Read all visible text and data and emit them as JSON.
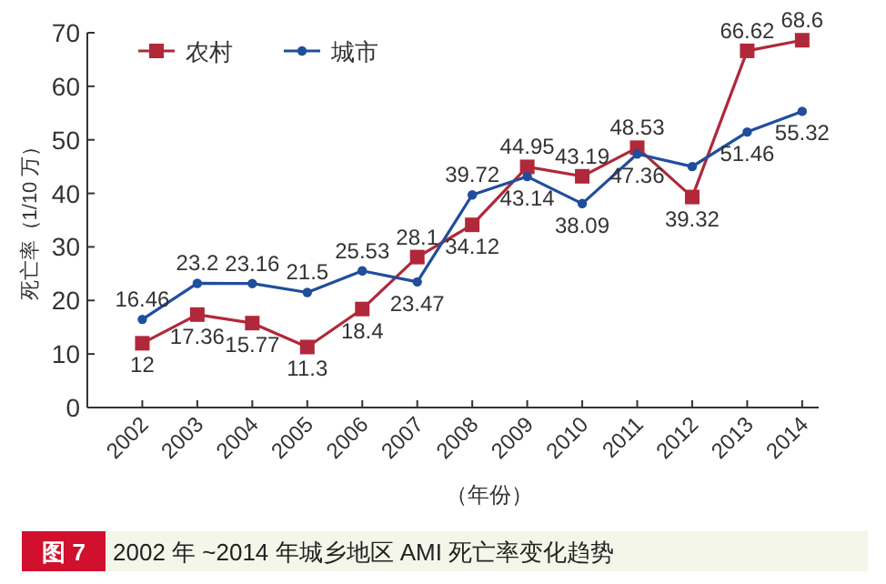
{
  "chart_data": {
    "type": "line",
    "title": "2002 年 ~2014 年城乡地区 AMI 死亡率变化趋势",
    "annotations": [
      "图 7"
    ],
    "xlabel": "（年份）",
    "ylabel": "死亡率（1/10 万）",
    "categories": [
      "2002",
      "2003",
      "2004",
      "2005",
      "2006",
      "2007",
      "2008",
      "2009",
      "2010",
      "2011",
      "2012",
      "2013",
      "2014"
    ],
    "series": [
      {
        "name": "农村",
        "color": "#b0283a",
        "marker": "square",
        "values": [
          12,
          17.36,
          15.77,
          11.3,
          18.4,
          28.1,
          34.12,
          44.95,
          43.19,
          48.53,
          39.32,
          66.62,
          68.6
        ],
        "value_labels": [
          "12",
          "17.36",
          "15.77",
          "11.3",
          "18.4",
          "28.1",
          "34.12",
          "44.95",
          "43.19",
          "48.53",
          "39.32",
          "66.62",
          "68.6"
        ]
      },
      {
        "name": "城市",
        "color": "#1f4e9c",
        "marker": "circle",
        "values": [
          16.46,
          23.2,
          23.16,
          21.5,
          25.53,
          23.47,
          39.72,
          43.14,
          38.09,
          47.36,
          45,
          51.46,
          55.32
        ],
        "value_labels": [
          "16.46",
          "23.2",
          "23.16",
          "21.5",
          "25.53",
          "23.47",
          "39.72",
          "43.14",
          "38.09",
          "47.36",
          null,
          "51.46",
          "55.32"
        ]
      }
    ],
    "ylim": [
      0,
      70
    ],
    "yticks": [
      0,
      10,
      20,
      30,
      40,
      50,
      60,
      70
    ],
    "legend": "top left",
    "grid": false
  }
}
